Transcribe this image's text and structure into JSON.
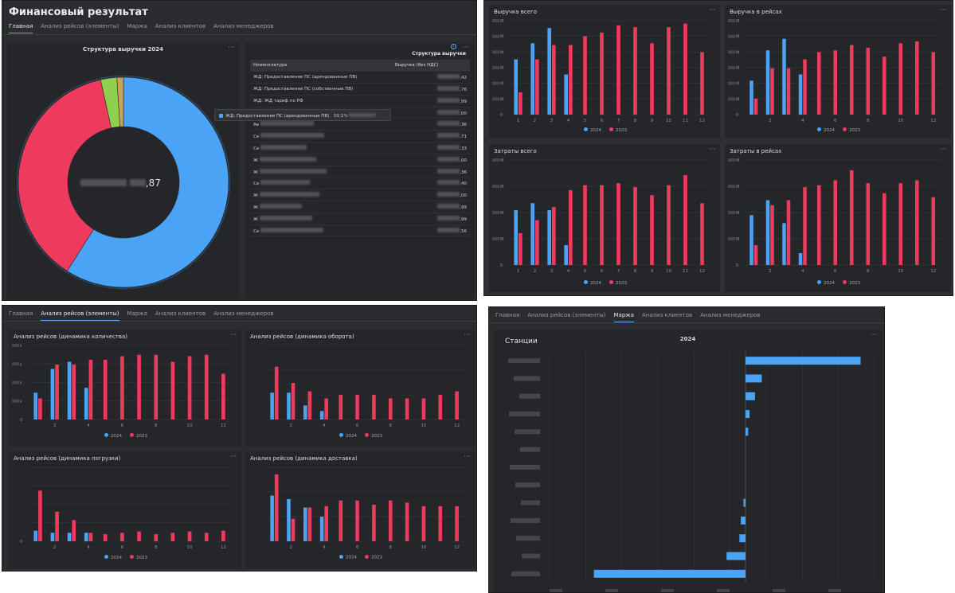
{
  "colors": {
    "c2024": "#4aa3f5",
    "c2023": "#ee3a5d",
    "green": "#8fd14f"
  },
  "s1": {
    "app_title": "Финансовый результат",
    "tabs": [
      "Главная",
      "Анализ рейсов (элементы)",
      "Маржа",
      "Анализ клиентов",
      "Анализ менеджеров"
    ],
    "active_tab": 0,
    "donut": {
      "title": "Структура выручки 2024",
      "center_value_suffix": ",87",
      "slices": [
        {
          "value": 59,
          "color": "#4aa3f5"
        },
        {
          "value": 37.5,
          "color": "#ee3a5d"
        },
        {
          "value": 2.5,
          "color": "#8fd14f"
        },
        {
          "value": 1,
          "color": "#c9a35a"
        }
      ]
    },
    "tooltip": {
      "text": "ЖД: Предоставление ПС (арендованные ПВ)",
      "value_prefix": "59,1%"
    },
    "table": {
      "title": "Структура выручки",
      "col1": "Номенклатура",
      "col2": "Выручка (без НДС)",
      "rows": [
        {
          "name": "ЖД: Предоставление ПС (арендованные ПВ)",
          "val": ",42"
        },
        {
          "name": "ЖД: Предоставление ПС (собственные ПВ)",
          "val": ",76"
        },
        {
          "name": "ЖД: ЖД тариф по РФ",
          "val": ",99"
        },
        {
          "name": "Ав",
          "val": ",00"
        },
        {
          "name": "Ав",
          "val": ",36"
        },
        {
          "name": "Се",
          "val": ",71"
        },
        {
          "name": "Се",
          "val": ",33"
        },
        {
          "name": "Ж",
          "val": ",00"
        },
        {
          "name": "Ж",
          "val": ",36"
        },
        {
          "name": "Се",
          "val": ",40"
        },
        {
          "name": "Ж",
          "val": ",00"
        },
        {
          "name": "Ж",
          "val": ",99"
        },
        {
          "name": "Ж",
          "val": ",99"
        },
        {
          "name": "Се",
          "val": ",56"
        }
      ]
    }
  },
  "s2": {
    "legend": {
      "a": "2024",
      "b": "2023"
    },
    "panels": [
      {
        "title": "Выручка всего",
        "months": [
          "1",
          "2",
          "3",
          "4",
          "5",
          "6",
          "7",
          "8",
          "9",
          "10",
          "11",
          "12"
        ],
        "y_ticks": [
          "М",
          "М",
          "М",
          "М",
          "М",
          "М",
          "0"
        ],
        "s2024": [
          0.62,
          0.8,
          0.97,
          0.45,
          null,
          null,
          null,
          null,
          null,
          null,
          null,
          null
        ],
        "s2023": [
          0.25,
          0.62,
          0.78,
          0.78,
          0.88,
          0.92,
          1.0,
          0.98,
          0.8,
          0.98,
          1.02,
          0.7
        ]
      },
      {
        "title": "Выручка в рейсах",
        "months": [
          "2",
          "4",
          "6",
          "8",
          "10",
          "12"
        ],
        "y_ticks": [
          "М",
          "М",
          "М",
          "М",
          "М",
          "М",
          "0"
        ],
        "s2024": [
          0.38,
          0.72,
          0.85,
          0.45,
          null,
          null,
          null,
          null,
          null,
          null,
          null,
          null
        ],
        "s2023": [
          0.18,
          0.52,
          0.52,
          0.62,
          0.7,
          0.72,
          0.78,
          0.75,
          0.65,
          0.8,
          0.82,
          0.7
        ]
      },
      {
        "title": "Затраты всего",
        "months": [
          "1",
          "2",
          "3",
          "4",
          "5",
          "6",
          "7",
          "8",
          "9",
          "10",
          "11",
          "12"
        ],
        "y_ticks": [
          "М",
          "М",
          "М",
          "М",
          "0"
        ],
        "s2024": [
          0.55,
          0.62,
          0.55,
          0.2,
          null,
          null,
          null,
          null,
          null,
          null,
          null,
          null
        ],
        "s2023": [
          0.32,
          0.45,
          0.58,
          0.75,
          0.8,
          0.8,
          0.82,
          0.78,
          0.7,
          0.8,
          0.9,
          0.62
        ]
      },
      {
        "title": "Затраты в рейсах",
        "months": [
          "2",
          "4",
          "6",
          "8",
          "10",
          "12"
        ],
        "y_ticks": [
          "М",
          "М",
          "М",
          "М",
          "0"
        ],
        "s2024": [
          0.5,
          0.65,
          0.42,
          0.12,
          null,
          null,
          null,
          null,
          null,
          null,
          null,
          null
        ],
        "s2023": [
          0.2,
          0.6,
          0.65,
          0.78,
          0.8,
          0.85,
          0.95,
          0.82,
          0.72,
          0.82,
          0.85,
          0.68
        ]
      }
    ]
  },
  "s3": {
    "tabs": [
      "Главная",
      "Анализ рейсов (элементы)",
      "Маржа",
      "Анализ клиентов",
      "Анализ менеджеров"
    ],
    "active_tab": 1,
    "legend": {
      "a": "2024",
      "b": "2023"
    },
    "panels": [
      {
        "title": "Анализ рейсов (динамика количества)",
        "months": [
          "2",
          "4",
          "6",
          "8",
          "10",
          "12"
        ],
        "y_ticks": [
          "k",
          "k",
          "k",
          "k",
          "0"
        ],
        "s2024": [
          0.38,
          0.72,
          0.82,
          0.45,
          null,
          null,
          null,
          null,
          null,
          null,
          null,
          null
        ],
        "s2023": [
          0.3,
          0.78,
          0.78,
          0.85,
          0.85,
          0.9,
          0.92,
          0.92,
          0.82,
          0.9,
          0.92,
          0.65
        ]
      },
      {
        "title": "Анализ рейсов (динамика оборота)",
        "months": [
          "2",
          "4",
          "6",
          "8",
          "10",
          "12"
        ],
        "y_ticks": [],
        "s2024": [
          0.38,
          0.38,
          0.2,
          0.12,
          null,
          null,
          null,
          null,
          null,
          null,
          null,
          null
        ],
        "s2023": [
          0.75,
          0.52,
          0.4,
          0.3,
          0.35,
          0.35,
          0.35,
          0.3,
          0.3,
          0.3,
          0.35,
          0.4
        ]
      },
      {
        "title": "Анализ рейсов (динамика погрузки)",
        "months": [
          "2",
          "4",
          "6",
          "8",
          "10",
          "12"
        ],
        "y_ticks": [
          "",
          "",
          "",
          "",
          "0"
        ],
        "s2024": [
          0.15,
          0.12,
          0.12,
          0.12,
          null,
          null,
          null,
          null,
          null,
          null,
          null,
          null
        ],
        "s2023": [
          0.72,
          0.42,
          0.3,
          0.12,
          0.1,
          0.12,
          0.14,
          0.1,
          0.12,
          0.14,
          0.12,
          0.15
        ]
      },
      {
        "title": "Анализ рейсов (динамика доставка)",
        "months": [
          "2",
          "4",
          "6",
          "8",
          "10",
          "12"
        ],
        "y_ticks": [],
        "s2024": [
          0.65,
          0.6,
          0.48,
          0.35,
          null,
          null,
          null,
          null,
          null,
          null,
          null,
          null
        ],
        "s2023": [
          0.95,
          0.32,
          0.48,
          0.5,
          0.58,
          0.58,
          0.52,
          0.58,
          0.55,
          0.5,
          0.5,
          0.5
        ]
      }
    ]
  },
  "s4": {
    "tabs": [
      "Главная",
      "Анализ рейсов (элементы)",
      "Маржа",
      "Анализ клиентов",
      "Анализ менеджеров"
    ],
    "active_tab": 2,
    "panel_title": "Станции",
    "chart_title": "2024",
    "chart_data": {
      "type": "bar",
      "orientation": "horizontal",
      "title": "2024",
      "values": [
        0.85,
        0.12,
        0.07,
        0.03,
        0.02,
        0,
        0,
        0,
        -0.015,
        -0.035,
        -0.045,
        -0.14,
        -1.12
      ]
    }
  }
}
